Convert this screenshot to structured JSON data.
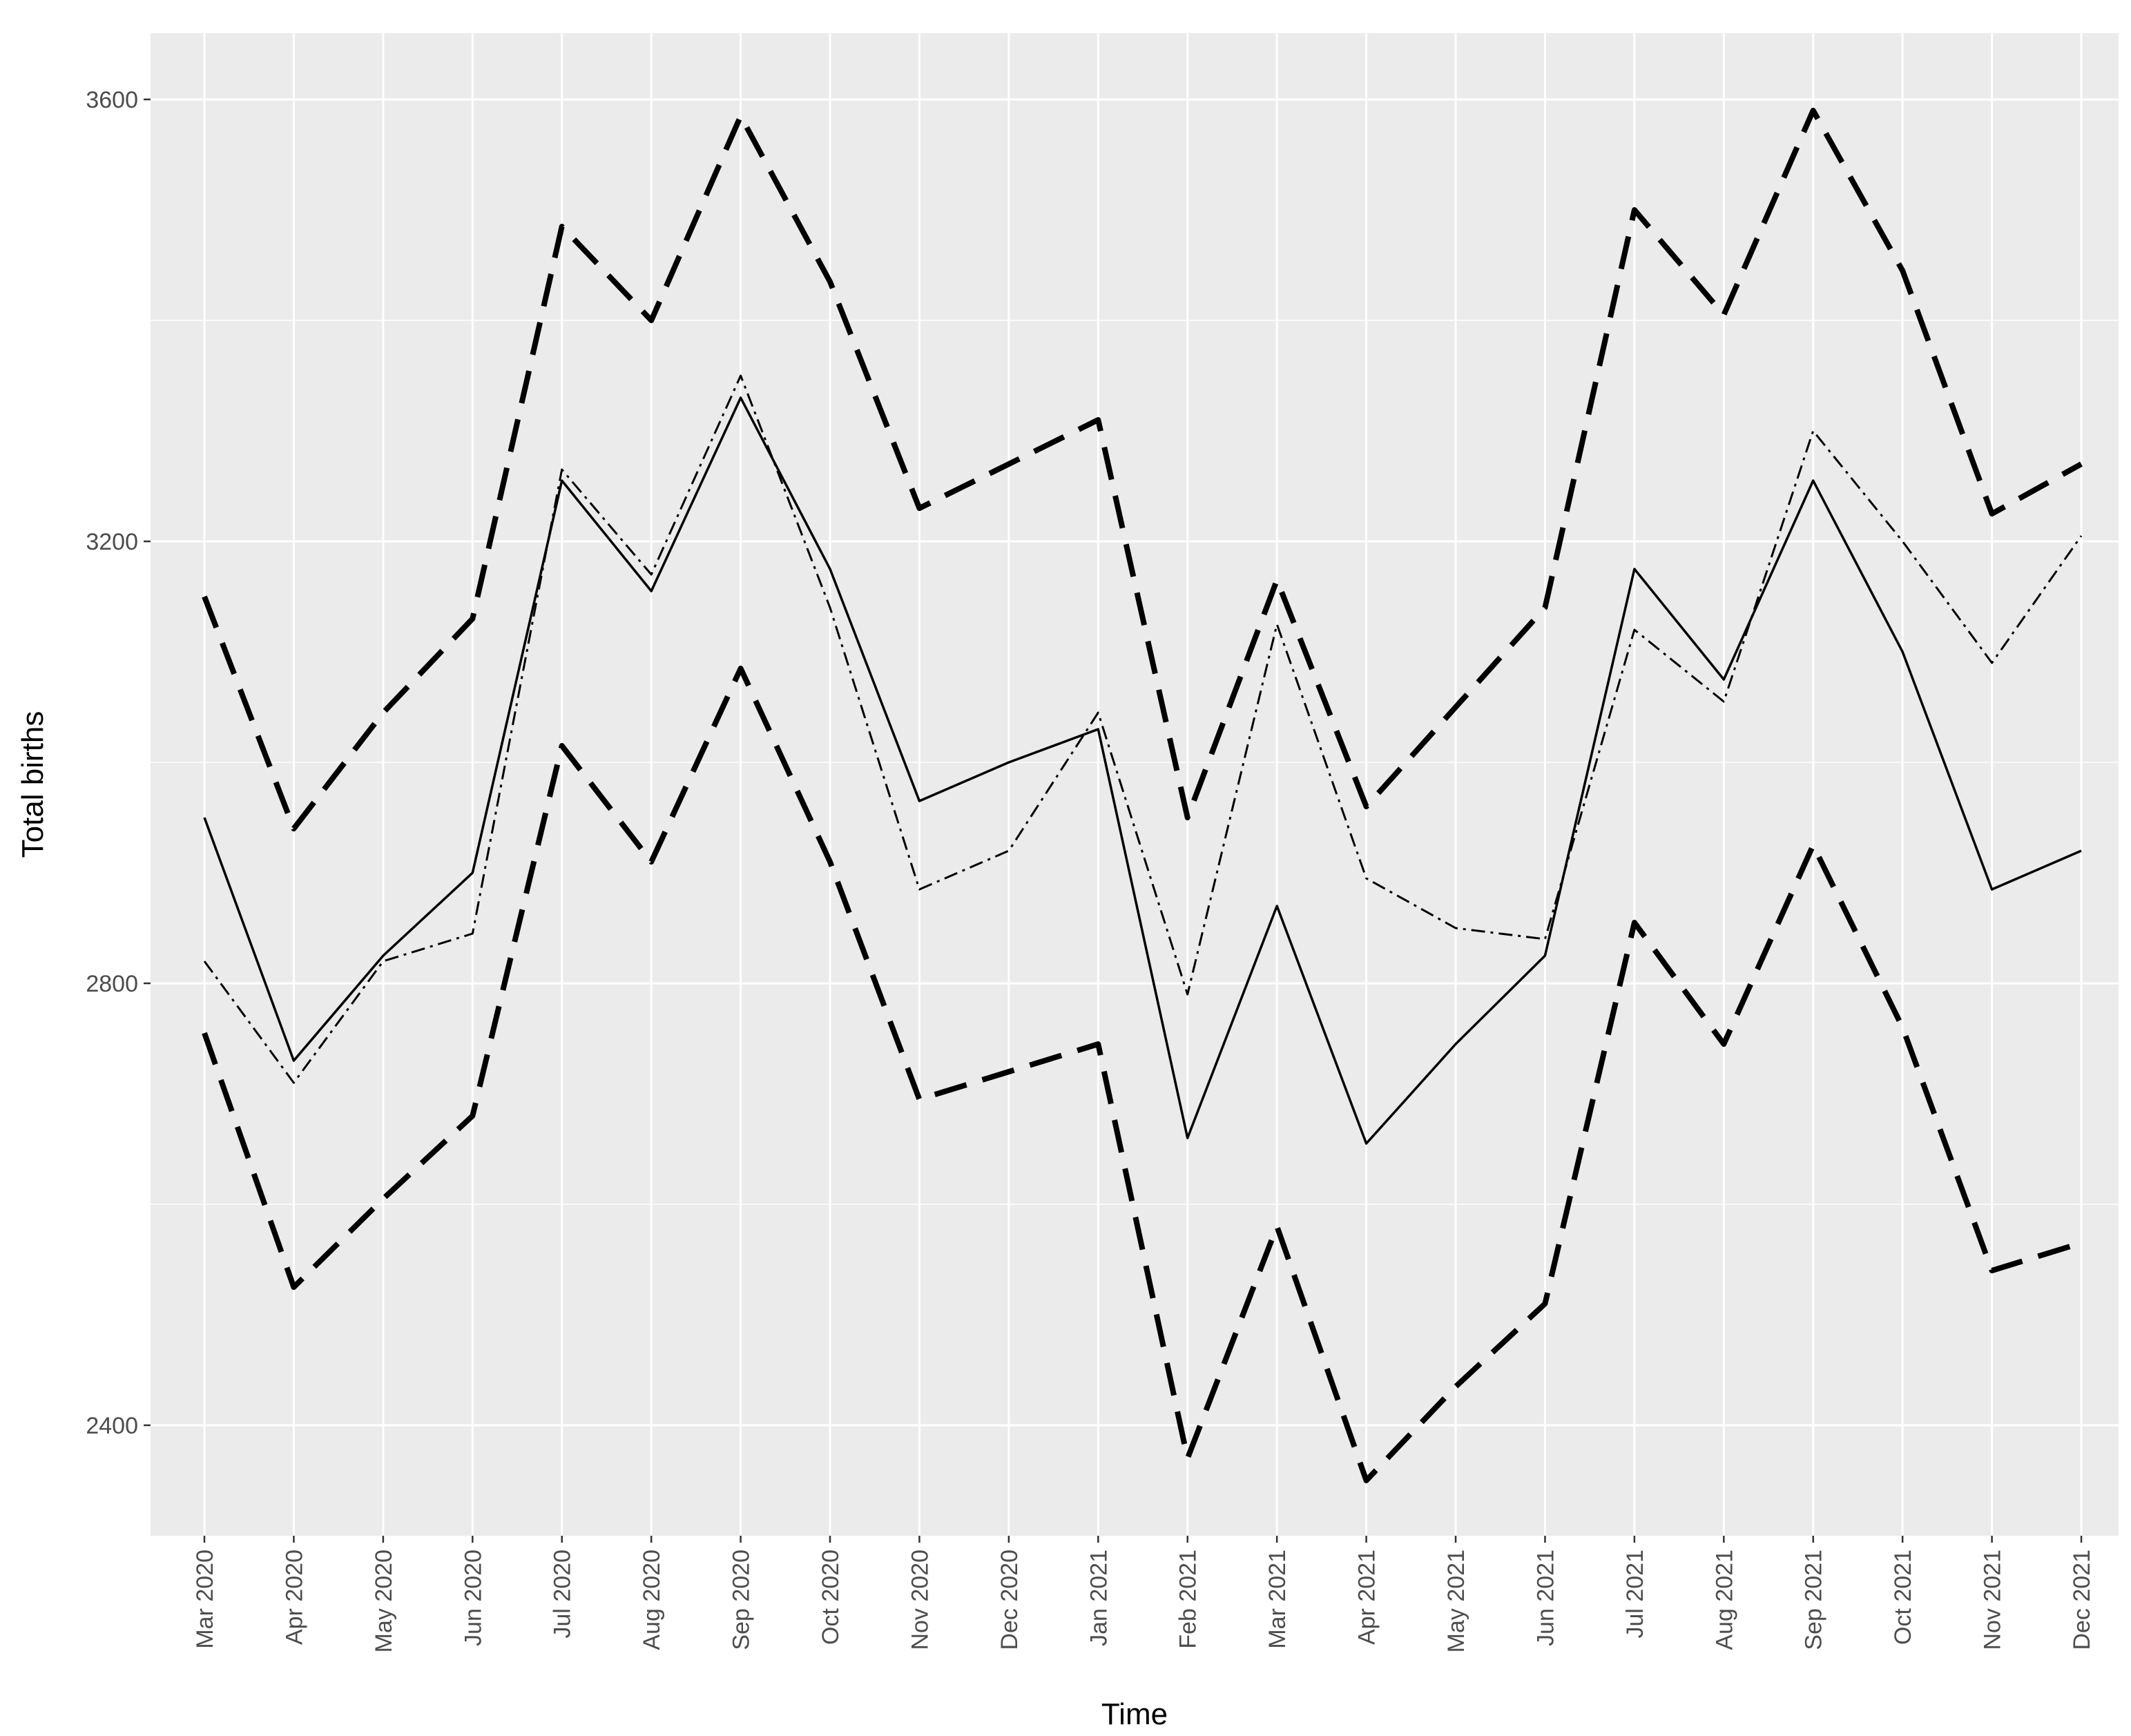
{
  "chart_data": {
    "type": "line",
    "title": "",
    "xlabel": "Time",
    "ylabel": "Total births",
    "categories": [
      "Mar 2020",
      "Apr 2020",
      "May 2020",
      "Jun 2020",
      "Jul 2020",
      "Aug 2020",
      "Sep 2020",
      "Oct 2020",
      "Nov 2020",
      "Dec 2020",
      "Jan 2021",
      "Feb 2021",
      "Mar 2021",
      "Apr 2021",
      "May 2021",
      "Jun 2021",
      "Jul 2021",
      "Aug 2021",
      "Sep 2021",
      "Oct 2021",
      "Nov 2021",
      "Dec 2021"
    ],
    "y_ticks": [
      2400,
      2800,
      3200,
      3600
    ],
    "ylim": [
      2265,
      3660
    ],
    "grid": true,
    "legend": "none",
    "series": [
      {
        "style": "solid",
        "values": [
          2950,
          2730,
          2825,
          2900,
          3255,
          3155,
          3330,
          3175,
          2965,
          3000,
          3030,
          2660,
          2870,
          2655,
          2745,
          2825,
          3175,
          3075,
          3255,
          3100,
          2885,
          2920
        ]
      },
      {
        "style": "dotdash",
        "values": [
          2820,
          2710,
          2820,
          2845,
          3265,
          3170,
          3350,
          3140,
          2885,
          2920,
          3045,
          2790,
          3125,
          2895,
          2850,
          2840,
          3120,
          3055,
          3300,
          3200,
          3090,
          3205
        ]
      },
      {
        "style": "dashed-thick",
        "values": [
          3150,
          2940,
          3045,
          3130,
          3485,
          3400,
          3585,
          3435,
          3230,
          3270,
          3310,
          2950,
          3165,
          2960,
          3050,
          3140,
          3500,
          3405,
          3590,
          3445,
          3225,
          3270
        ]
      },
      {
        "style": "dashed-thick",
        "values": [
          2755,
          2525,
          2605,
          2680,
          3015,
          2910,
          3085,
          2910,
          2695,
          2720,
          2745,
          2370,
          2580,
          2350,
          2435,
          2510,
          2855,
          2745,
          2925,
          2760,
          2540,
          2565
        ]
      }
    ],
    "colors": {
      "panel": "#ebebeb",
      "grid": "#ffffff",
      "line": "#000000",
      "tick_text": "#4d4d4d"
    }
  }
}
